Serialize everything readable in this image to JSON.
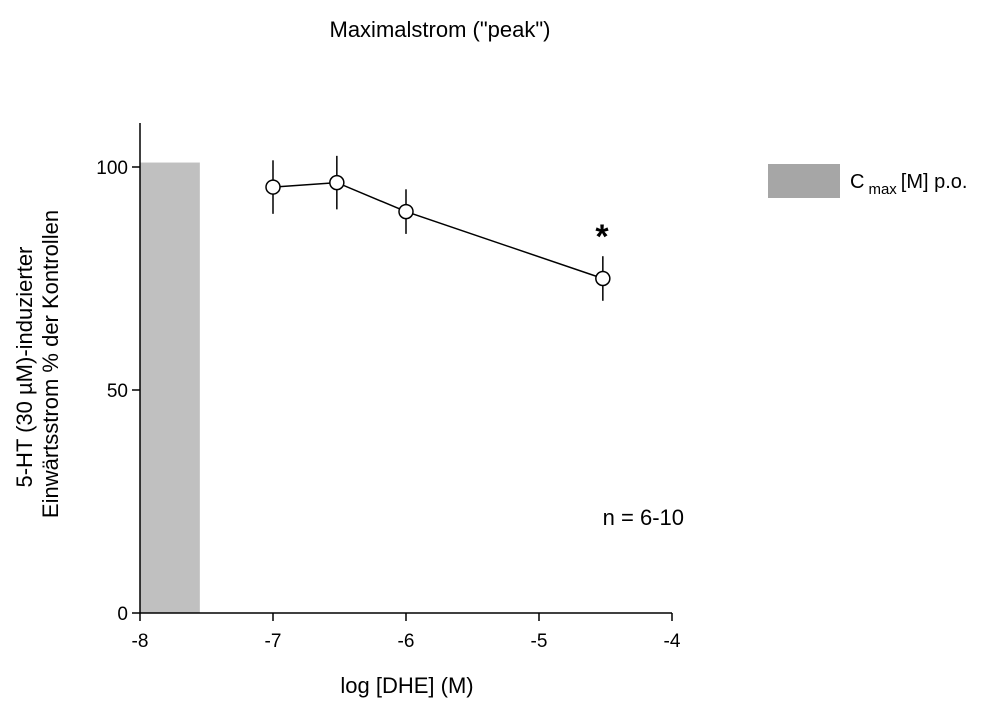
{
  "chart_data": {
    "type": "line",
    "title": "Maximalstrom (\"peak\")",
    "xlabel": "log [DHE] (M)",
    "ylabel": [
      "5-HT (30 µM)-induzierter",
      "Einwärtsstrom % der Kontrollen"
    ],
    "xlim": [
      -8,
      -4
    ],
    "ylim": [
      0,
      100
    ],
    "x_ticks": [
      -8,
      -7,
      -6,
      -5,
      -4
    ],
    "x_tick_labels": [
      "-8",
      "-7",
      "-6",
      "-5",
      "-4"
    ],
    "y_ticks": [
      0,
      50,
      100
    ],
    "y_tick_labels": [
      "0",
      "50",
      "100"
    ],
    "series": [
      {
        "x": [
          -7,
          -6.52,
          -6,
          -4.52
        ],
        "y": [
          95.5,
          96.5,
          90,
          75
        ],
        "err": [
          6,
          6,
          5,
          5
        ]
      }
    ],
    "band": {
      "x0": -8,
      "x1": -7.55,
      "y": 101,
      "color": "#c0c0c0"
    },
    "legend": {
      "label_main": "C",
      "label_sub": "max",
      "label_rest": "[M] p.o.",
      "color": "#a6a6a6",
      "position": "right"
    },
    "annotations": [
      {
        "text": "*",
        "x": -4.52,
        "y": 86
      },
      {
        "text": "n = 6-10"
      }
    ],
    "grid": false
  }
}
